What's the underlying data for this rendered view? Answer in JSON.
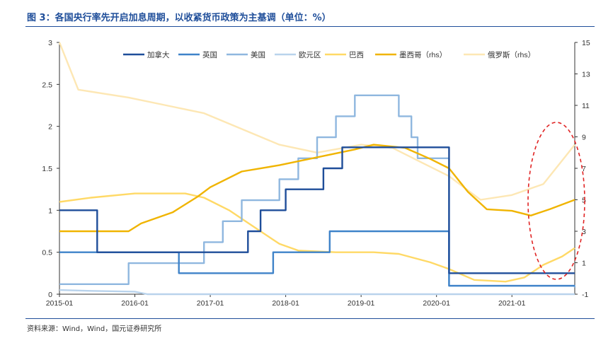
{
  "header": {
    "title": "图 3：各国央行率先开启加息周期，以收紧货币政策为主基调（单位：%）"
  },
  "footer": {
    "source": "资料来源：Wind，Wind，国元证券研究所"
  },
  "chart_data": {
    "type": "line",
    "x_ticks": [
      "2015-01",
      "2016-01",
      "2017-01",
      "2018-01",
      "2019-01",
      "2020-01",
      "2021-01"
    ],
    "x_range": [
      "2015-01",
      "2021-11"
    ],
    "y_left": {
      "ticks": [
        "0",
        "0.5",
        "1",
        "1.5",
        "2",
        "2.5",
        "3"
      ],
      "range": [
        0,
        3
      ]
    },
    "y_right": {
      "ticks": [
        "-1",
        "1",
        "3",
        "5",
        "7",
        "9",
        "11",
        "13",
        "15"
      ],
      "range": [
        -1,
        15
      ]
    },
    "grid": false,
    "legend_position": "top",
    "series": [
      {
        "name": "加拿大",
        "axis": "left",
        "color": "#1f4e9a",
        "step": true,
        "points": [
          [
            "2015-01",
            1.0
          ],
          [
            "2015-07",
            0.75
          ],
          [
            "2015-07",
            0.5
          ],
          [
            "2017-07",
            0.75
          ],
          [
            "2017-09",
            1.0
          ],
          [
            "2018-01",
            1.25
          ],
          [
            "2018-07",
            1.5
          ],
          [
            "2018-10",
            1.75
          ],
          [
            "2019-01",
            1.75
          ],
          [
            "2019-12",
            1.75
          ],
          [
            "2020-03",
            1.25
          ],
          [
            "2020-03",
            0.25
          ],
          [
            "2021-11",
            0.25
          ]
        ]
      },
      {
        "name": "英国",
        "axis": "left",
        "color": "#3f83c9",
        "step": true,
        "points": [
          [
            "2015-01",
            0.5
          ],
          [
            "2016-08",
            0.25
          ],
          [
            "2017-11",
            0.5
          ],
          [
            "2018-08",
            0.75
          ],
          [
            "2020-03",
            0.25
          ],
          [
            "2020-03",
            0.1
          ],
          [
            "2021-11",
            0.1
          ]
        ]
      },
      {
        "name": "美国",
        "axis": "left",
        "color": "#8fb7df",
        "step": true,
        "points": [
          [
            "2015-01",
            0.12
          ],
          [
            "2015-12",
            0.37
          ],
          [
            "2016-12",
            0.62
          ],
          [
            "2017-03",
            0.87
          ],
          [
            "2017-06",
            1.12
          ],
          [
            "2017-12",
            1.37
          ],
          [
            "2018-03",
            1.62
          ],
          [
            "2018-06",
            1.87
          ],
          [
            "2018-09",
            2.12
          ],
          [
            "2018-12",
            2.37
          ],
          [
            "2019-07",
            2.12
          ],
          [
            "2019-09",
            1.87
          ],
          [
            "2019-10",
            1.62
          ],
          [
            "2020-03",
            1.12
          ],
          [
            "2020-03",
            0.1
          ],
          [
            "2021-11",
            0.08
          ]
        ]
      },
      {
        "name": "欧元区",
        "axis": "left",
        "color": "#b9d3ec",
        "step": false,
        "points": [
          [
            "2015-01",
            0.05
          ],
          [
            "2015-06",
            0.04
          ],
          [
            "2016-01",
            0.03
          ],
          [
            "2016-03",
            0.0
          ],
          [
            "2021-11",
            0.0
          ]
        ]
      },
      {
        "name": "巴西",
        "axis": "left",
        "color": "#ffd966",
        "step": false,
        "points": [
          [
            "2015-01",
            1.1
          ],
          [
            "2015-06",
            1.15
          ],
          [
            "2016-01",
            1.2
          ],
          [
            "2016-09",
            1.2
          ],
          [
            "2016-12",
            1.15
          ],
          [
            "2017-04",
            1.0
          ],
          [
            "2017-08",
            0.8
          ],
          [
            "2017-12",
            0.6
          ],
          [
            "2018-03",
            0.52
          ],
          [
            "2018-09",
            0.5
          ],
          [
            "2019-03",
            0.5
          ],
          [
            "2019-07",
            0.48
          ],
          [
            "2019-12",
            0.38
          ],
          [
            "2020-03",
            0.3
          ],
          [
            "2020-07",
            0.17
          ],
          [
            "2020-12",
            0.15
          ],
          [
            "2021-03",
            0.2
          ],
          [
            "2021-06",
            0.35
          ],
          [
            "2021-09",
            0.45
          ],
          [
            "2021-11",
            0.55
          ]
        ]
      },
      {
        "name": "墨西哥（rhs）",
        "axis": "right",
        "color": "#f0b400",
        "step": false,
        "points": [
          [
            "2015-01",
            3.0
          ],
          [
            "2015-12",
            3.0
          ],
          [
            "2016-02",
            3.5
          ],
          [
            "2016-07",
            4.2
          ],
          [
            "2016-11",
            5.2
          ],
          [
            "2017-01",
            5.8
          ],
          [
            "2017-06",
            6.8
          ],
          [
            "2017-12",
            7.2
          ],
          [
            "2018-06",
            7.7
          ],
          [
            "2018-12",
            8.2
          ],
          [
            "2019-03",
            8.5
          ],
          [
            "2019-08",
            8.3
          ],
          [
            "2019-12",
            7.6
          ],
          [
            "2020-03",
            7.0
          ],
          [
            "2020-06",
            5.5
          ],
          [
            "2020-09",
            4.4
          ],
          [
            "2021-01",
            4.3
          ],
          [
            "2021-04",
            4.0
          ],
          [
            "2021-07",
            4.4
          ],
          [
            "2021-11",
            5.0
          ]
        ]
      },
      {
        "name": "俄罗斯（rhs）",
        "axis": "right",
        "color": "#fde7b4",
        "step": false,
        "points": [
          [
            "2015-01",
            15.0
          ],
          [
            "2015-04",
            12.0
          ],
          [
            "2015-12",
            11.5
          ],
          [
            "2016-06",
            11.0
          ],
          [
            "2016-12",
            10.5
          ],
          [
            "2017-06",
            9.5
          ],
          [
            "2017-12",
            8.5
          ],
          [
            "2018-06",
            8.0
          ],
          [
            "2019-01",
            8.5
          ],
          [
            "2019-06",
            8.3
          ],
          [
            "2019-10",
            7.5
          ],
          [
            "2020-03",
            6.5
          ],
          [
            "2020-08",
            5.0
          ],
          [
            "2021-01",
            5.3
          ],
          [
            "2021-06",
            6.0
          ],
          [
            "2021-11",
            8.5
          ]
        ]
      }
    ]
  }
}
